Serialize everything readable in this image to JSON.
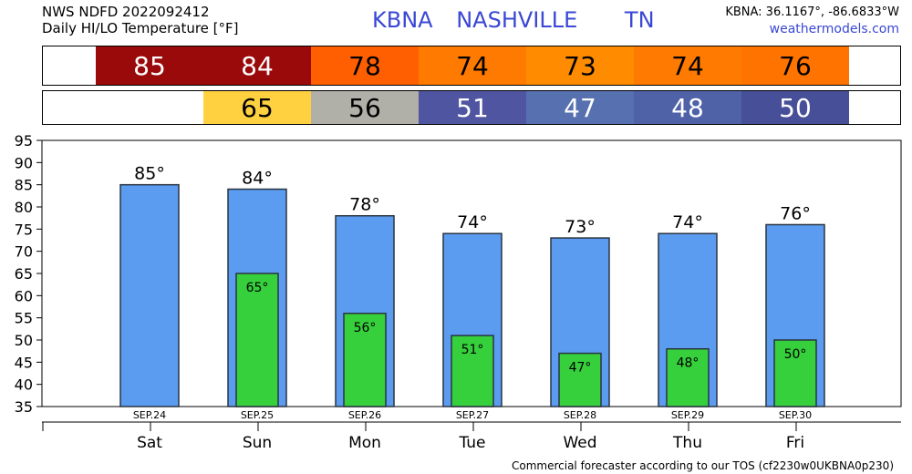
{
  "header": {
    "line1": "NWS NDFD 2022092412",
    "line2": "Daily HI/LO Temperature [°F]",
    "station": "KBNA",
    "city": "NASHVILLE",
    "state": "TN",
    "coords": "KBNA: 36.1167°, -86.6833°W",
    "site": "weathermodels.com"
  },
  "strips": {
    "hi": [
      {
        "label": "85",
        "color": "#9b0a0a",
        "text_color": "#ffffff"
      },
      {
        "label": "84",
        "color": "#9b0a0a",
        "text_color": "#ffffff"
      },
      {
        "label": "78",
        "color": "#ff5f00",
        "text_color": "#000000"
      },
      {
        "label": "74",
        "color": "#ff7a00",
        "text_color": "#000000"
      },
      {
        "label": "73",
        "color": "#ff8c00",
        "text_color": "#000000"
      },
      {
        "label": "74",
        "color": "#ff7a00",
        "text_color": "#000000"
      },
      {
        "label": "76",
        "color": "#ff7300",
        "text_color": "#000000"
      }
    ],
    "lo": [
      {
        "label": "",
        "color": "#ffffff",
        "text_color": "#000000"
      },
      {
        "label": "65",
        "color": "#ffd040",
        "text_color": "#000000"
      },
      {
        "label": "56",
        "color": "#b0b0a8",
        "text_color": "#000000"
      },
      {
        "label": "51",
        "color": "#4f55a0",
        "text_color": "#ffffff"
      },
      {
        "label": "47",
        "color": "#5670b0",
        "text_color": "#ffffff"
      },
      {
        "label": "48",
        "color": "#4f62a8",
        "text_color": "#ffffff"
      },
      {
        "label": "50",
        "color": "#474f98",
        "text_color": "#ffffff"
      }
    ]
  },
  "chart_data": {
    "type": "bar",
    "categories": [
      "Sat",
      "Sun",
      "Mon",
      "Tue",
      "Wed",
      "Thu",
      "Fri"
    ],
    "dates": [
      "SEP.24",
      "SEP.25",
      "SEP.26",
      "SEP.27",
      "SEP.28",
      "SEP.29",
      "SEP.30"
    ],
    "series": [
      {
        "values": [
          85,
          84,
          78,
          74,
          73,
          74,
          76
        ],
        "labels": [
          "85°",
          "84°",
          "78°",
          "74°",
          "73°",
          "74°",
          "76°"
        ],
        "color": "#5b9cf0"
      },
      {
        "values": [
          null,
          65,
          56,
          51,
          47,
          48,
          50
        ],
        "labels": [
          "",
          "65°",
          "56°",
          "51°",
          "47°",
          "48°",
          "50°"
        ],
        "color": "#36d03c"
      }
    ],
    "ylim": [
      35,
      95
    ],
    "yticks": [
      "35",
      "40",
      "45",
      "50",
      "55",
      "60",
      "65",
      "70",
      "75",
      "80",
      "85",
      "90",
      "95"
    ],
    "grid": false
  },
  "footer": "Commercial forecaster according to our TOS (cf2230w0UKBNA0p230)"
}
